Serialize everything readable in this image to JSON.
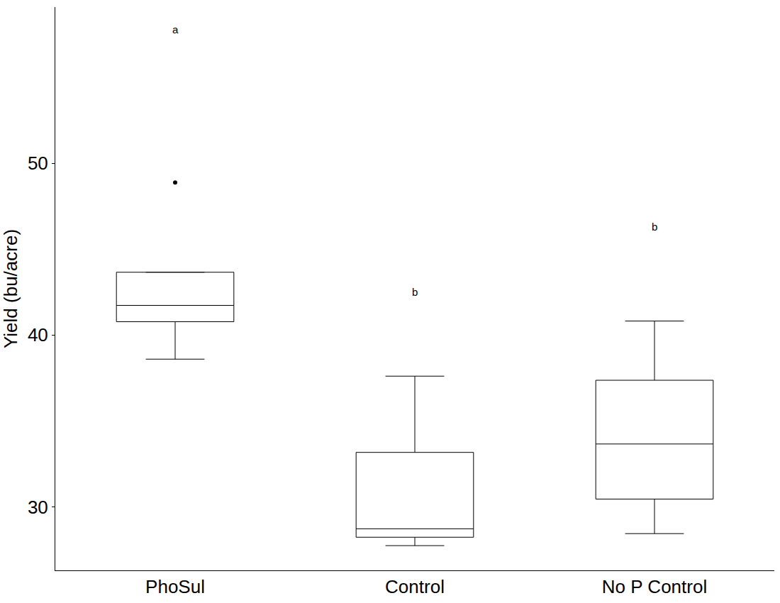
{
  "chart_data": {
    "type": "box",
    "y_label": "Yield (bu/acre)",
    "categories": [
      "PhoSul",
      "Control",
      "No P Control"
    ],
    "q1": [
      40.78,
      28.23,
      30.45
    ],
    "median": [
      41.73,
      28.72,
      33.66
    ],
    "q3": [
      43.66,
      33.17,
      37.37
    ],
    "lower_whisker": [
      38.6,
      27.74,
      28.44
    ],
    "upper_whisker": [
      43.66,
      37.61,
      40.82
    ],
    "outliers": [
      [
        48.89
      ],
      [],
      []
    ],
    "letters": [
      "a",
      "b",
      "b"
    ],
    "letter_y": [
      57.8,
      42.5,
      46.3
    ],
    "color": "#000000",
    "ylim": [
      26.3,
      59.1
    ],
    "yticks": [
      30,
      40,
      50
    ],
    "grid": false
  }
}
